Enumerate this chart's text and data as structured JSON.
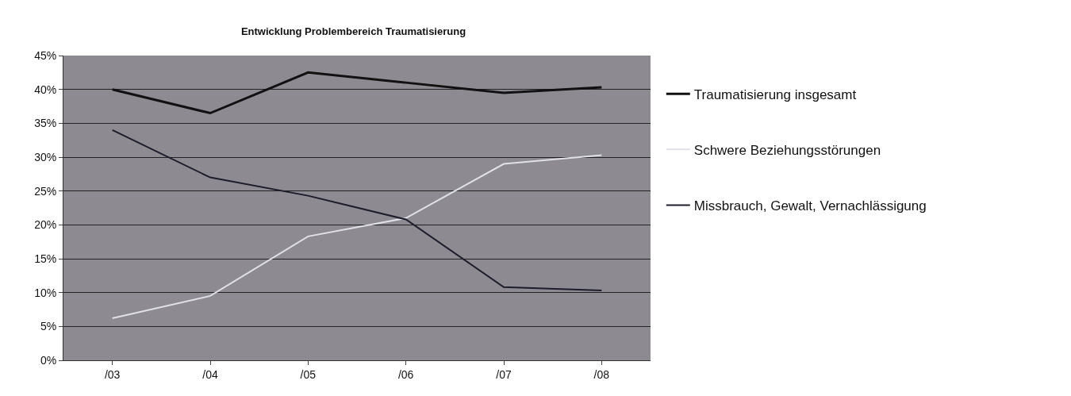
{
  "chart_data": {
    "type": "line",
    "title": "Entwicklung Problembereich Traumatisierung",
    "categories": [
      "/03",
      "/04",
      "/05",
      "/06",
      "/07",
      "/08"
    ],
    "series": [
      {
        "name": "Traumatisierung insgesamt",
        "color": "#111111",
        "values": [
          40,
          36.5,
          42.5,
          41,
          39.5,
          40.3
        ]
      },
      {
        "name": "Schwere Beziehungsstörungen",
        "color": "#e0e0e8",
        "values": [
          6.2,
          9.5,
          18.3,
          21,
          29,
          30.3
        ]
      },
      {
        "name": "Missbrauch, Gewalt, Vernachlässigung",
        "color": "#1c1c2a",
        "values": [
          34,
          27,
          24.3,
          20.8,
          10.8,
          10.3
        ]
      }
    ],
    "ylim": [
      0,
      45
    ],
    "yticks": [
      {
        "value": 0,
        "label": "0%"
      },
      {
        "value": 5,
        "label": "5%"
      },
      {
        "value": 10,
        "label": "10%"
      },
      {
        "value": 15,
        "label": "15%"
      },
      {
        "value": 20,
        "label": "20%"
      },
      {
        "value": 25,
        "label": "25%"
      },
      {
        "value": 30,
        "label": "30%"
      },
      {
        "value": 35,
        "label": "35%"
      },
      {
        "value": 40,
        "label": "40%"
      },
      {
        "value": 45,
        "label": "45%"
      }
    ],
    "grid": "y",
    "legend": "right",
    "marker": "none",
    "line_style": "solid"
  }
}
